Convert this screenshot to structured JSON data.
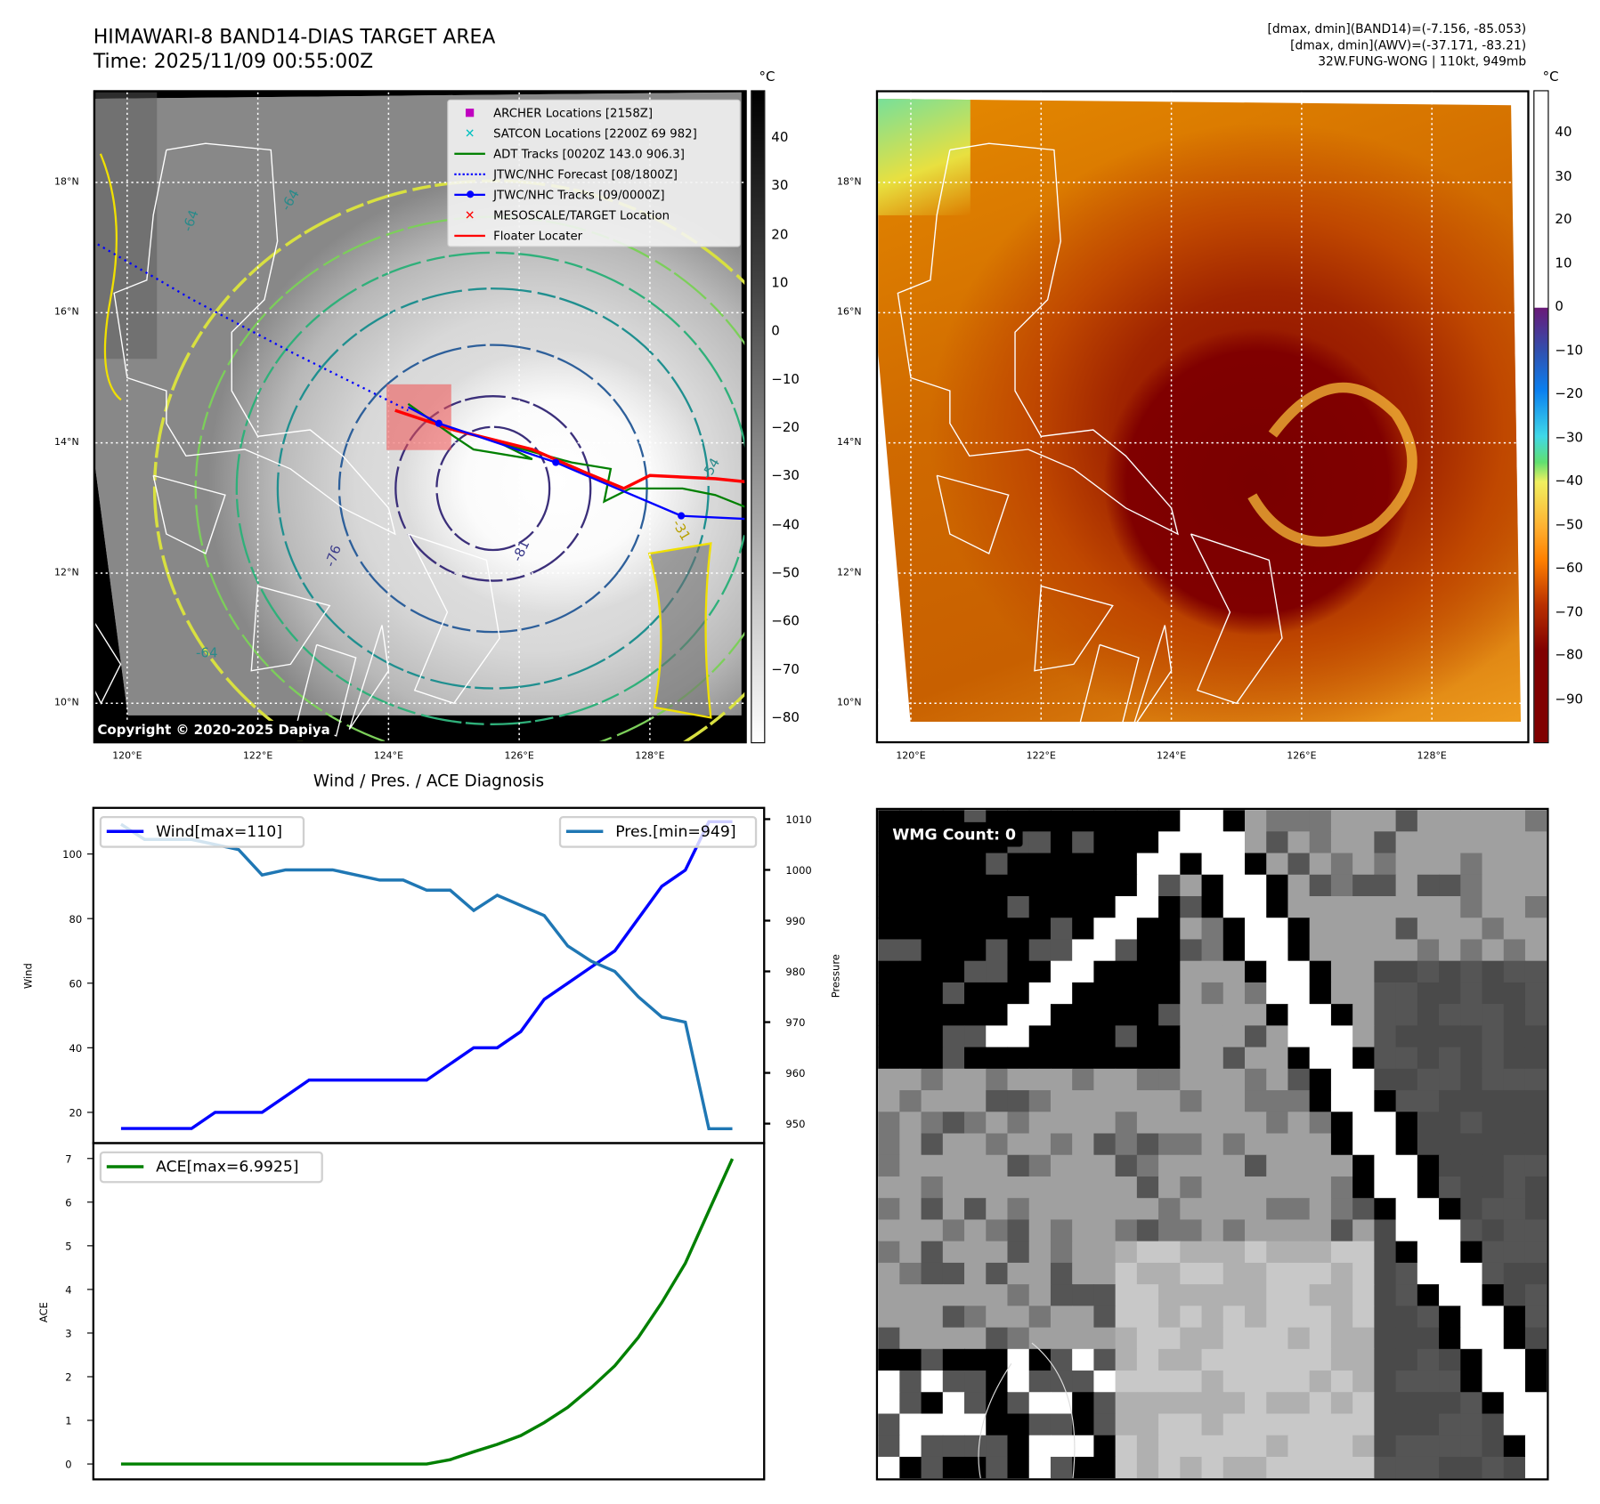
{
  "header": {
    "title": "HIMAWARI-8 BAND14-DIAS TARGET AREA",
    "time": "Time: 2025/11/09 00:55:00Z",
    "stats": [
      "[dmax, dmin](BAND14)=(-7.156, -85.053)",
      "[dmax, dmin](AWV)=(-37.171, -83.21)",
      "32W.FUNG-WONG | 110kt, 949mb"
    ]
  },
  "map": {
    "lat_labels": [
      "18°N",
      "16°N",
      "14°N",
      "12°N",
      "10°N"
    ],
    "lats": [
      18,
      16,
      14,
      12,
      10
    ],
    "lon_labels": [
      "120°E",
      "122°E",
      "124°E",
      "126°E",
      "128°E"
    ],
    "lons": [
      120,
      122,
      124,
      126,
      128
    ],
    "copyright": "Copyright © 2020-2025 Dapiya",
    "unit": "°C",
    "legend": [
      {
        "label": "ARCHER Locations [2158Z]",
        "color": "#c000c0",
        "marker": "square"
      },
      {
        "label": "SATCON Locations [2200Z 69 982]",
        "color": "#00c0c0",
        "marker": "x"
      },
      {
        "label": "ADT Tracks [0020Z 143.0 906.3]",
        "color": "#008000",
        "marker": "line"
      },
      {
        "label": "JTWC/NHC Forecast [08/1800Z]",
        "color": "#0000ff",
        "marker": "dotted"
      },
      {
        "label": "JTWC/NHC Tracks [09/0000Z]",
        "color": "#0000ff",
        "marker": "line-dot"
      },
      {
        "label": "MESOSCALE/TARGET Location",
        "color": "#ff0000",
        "marker": "x"
      },
      {
        "label": "Floater Locater",
        "color": "#ff0000",
        "marker": "line"
      }
    ],
    "contour_labels": [
      "-64",
      "-64",
      "-76",
      "-81",
      "-64",
      "-54",
      "-31"
    ],
    "colorbar1_ticks": [
      "40",
      "30",
      "20",
      "10",
      "0",
      "−10",
      "−20",
      "−30",
      "−40",
      "−50",
      "−60",
      "−70",
      "−80"
    ],
    "colorbar1_values": [
      40,
      30,
      20,
      10,
      0,
      -10,
      -20,
      -30,
      -40,
      -50,
      -60,
      -70,
      -80
    ],
    "colorbar1_range": [
      -85,
      50
    ],
    "colorbar2_ticks": [
      "40",
      "30",
      "20",
      "10",
      "0",
      "−10",
      "−20",
      "−30",
      "−40",
      "−50",
      "−60",
      "−70",
      "−80",
      "−90"
    ],
    "colorbar2_values": [
      40,
      30,
      20,
      10,
      0,
      -10,
      -20,
      -30,
      -40,
      -50,
      -60,
      -70,
      -80,
      -90
    ],
    "colorbar2_range": [
      -100,
      50
    ],
    "target_box": {
      "lon": [
        123.97,
        124.96
      ],
      "lat": [
        13.89,
        14.9
      ]
    }
  },
  "tracks": {
    "jtwc_forecast": [
      [
        119.55,
        17.05
      ],
      [
        121.0,
        16.2
      ],
      [
        122.5,
        15.4
      ],
      [
        124.3,
        14.5
      ]
    ],
    "jtwc_track": [
      [
        124.3,
        14.55
      ],
      [
        124.77,
        14.3
      ],
      [
        126.56,
        13.7
      ],
      [
        128.48,
        12.88
      ],
      [
        129.5,
        12.83
      ]
    ],
    "adt": [
      [
        124.3,
        14.6
      ],
      [
        125.0,
        14.1
      ],
      [
        125.3,
        13.9
      ],
      [
        126.2,
        13.75
      ],
      [
        125.7,
        14.0
      ],
      [
        126.8,
        13.7
      ],
      [
        127.4,
        13.6
      ],
      [
        127.3,
        13.1
      ],
      [
        127.7,
        13.3
      ],
      [
        128.5,
        13.3
      ],
      [
        129.0,
        13.2
      ],
      [
        129.5,
        13.0
      ]
    ],
    "floater": [
      [
        124.1,
        14.5
      ],
      [
        125.0,
        14.2
      ],
      [
        126.2,
        13.9
      ],
      [
        127.0,
        13.55
      ],
      [
        127.6,
        13.3
      ],
      [
        128.0,
        13.5
      ],
      [
        129.0,
        13.45
      ],
      [
        129.5,
        13.4
      ]
    ]
  },
  "diagnosis": {
    "title": "Wind / Pres. / ACE Diagnosis",
    "wind_legend": "Wind[max=110]",
    "pres_legend": "Pres.[min=949]",
    "ace_legend": "ACE[max=6.9925]",
    "wind_ylabel": "Wind",
    "pres_ylabel": "Pressure",
    "ace_ylabel": "ACE"
  },
  "wmg": {
    "label": "WMG Count: 0"
  },
  "chart_data": [
    {
      "type": "line",
      "title": "Wind / Pres. / ACE Diagnosis",
      "x": [
        0,
        1,
        2,
        3,
        4,
        5,
        6,
        7,
        8,
        9,
        10,
        11,
        12,
        13,
        14,
        15,
        16,
        17,
        18,
        19,
        20,
        21,
        22,
        23,
        24,
        25,
        26
      ],
      "series": [
        {
          "name": "Wind[max=110]",
          "axis": "left",
          "color": "#0000ff",
          "values": [
            15,
            15,
            15,
            15,
            20,
            20,
            20,
            25,
            30,
            30,
            30,
            30,
            30,
            30,
            35,
            40,
            40,
            45,
            55,
            60,
            65,
            70,
            80,
            90,
            95,
            110,
            110
          ]
        },
        {
          "name": "Pres.[min=949]",
          "axis": "right",
          "color": "#1f77b4",
          "values": [
            1009,
            1006,
            1006,
            1006,
            1005,
            1004,
            999,
            1000,
            1000,
            1000,
            999,
            998,
            998,
            996,
            996,
            992,
            995,
            993,
            991,
            985,
            982,
            980,
            975,
            971,
            970,
            949,
            949
          ]
        }
      ],
      "ylabel": "Wind",
      "y2label": "Pressure",
      "yticks": [
        20,
        40,
        60,
        80,
        100
      ],
      "y2ticks": [
        950,
        960,
        970,
        980,
        990,
        1000,
        1010
      ]
    },
    {
      "type": "line",
      "x": [
        0,
        1,
        2,
        3,
        4,
        5,
        6,
        7,
        8,
        9,
        10,
        11,
        12,
        13,
        14,
        15,
        16,
        17,
        18,
        19,
        20,
        21,
        22,
        23,
        24,
        25,
        26
      ],
      "series": [
        {
          "name": "ACE[max=6.9925]",
          "color": "#008000",
          "values": [
            0,
            0,
            0,
            0,
            0,
            0,
            0,
            0,
            0,
            0,
            0,
            0,
            0,
            0,
            0.1,
            0.28,
            0.45,
            0.65,
            0.95,
            1.3,
            1.75,
            2.25,
            2.9,
            3.7,
            4.6,
            5.8,
            6.9925
          ]
        }
      ],
      "ylabel": "ACE",
      "yticks": [
        0,
        1,
        2,
        3,
        4,
        5,
        6,
        7
      ]
    }
  ]
}
